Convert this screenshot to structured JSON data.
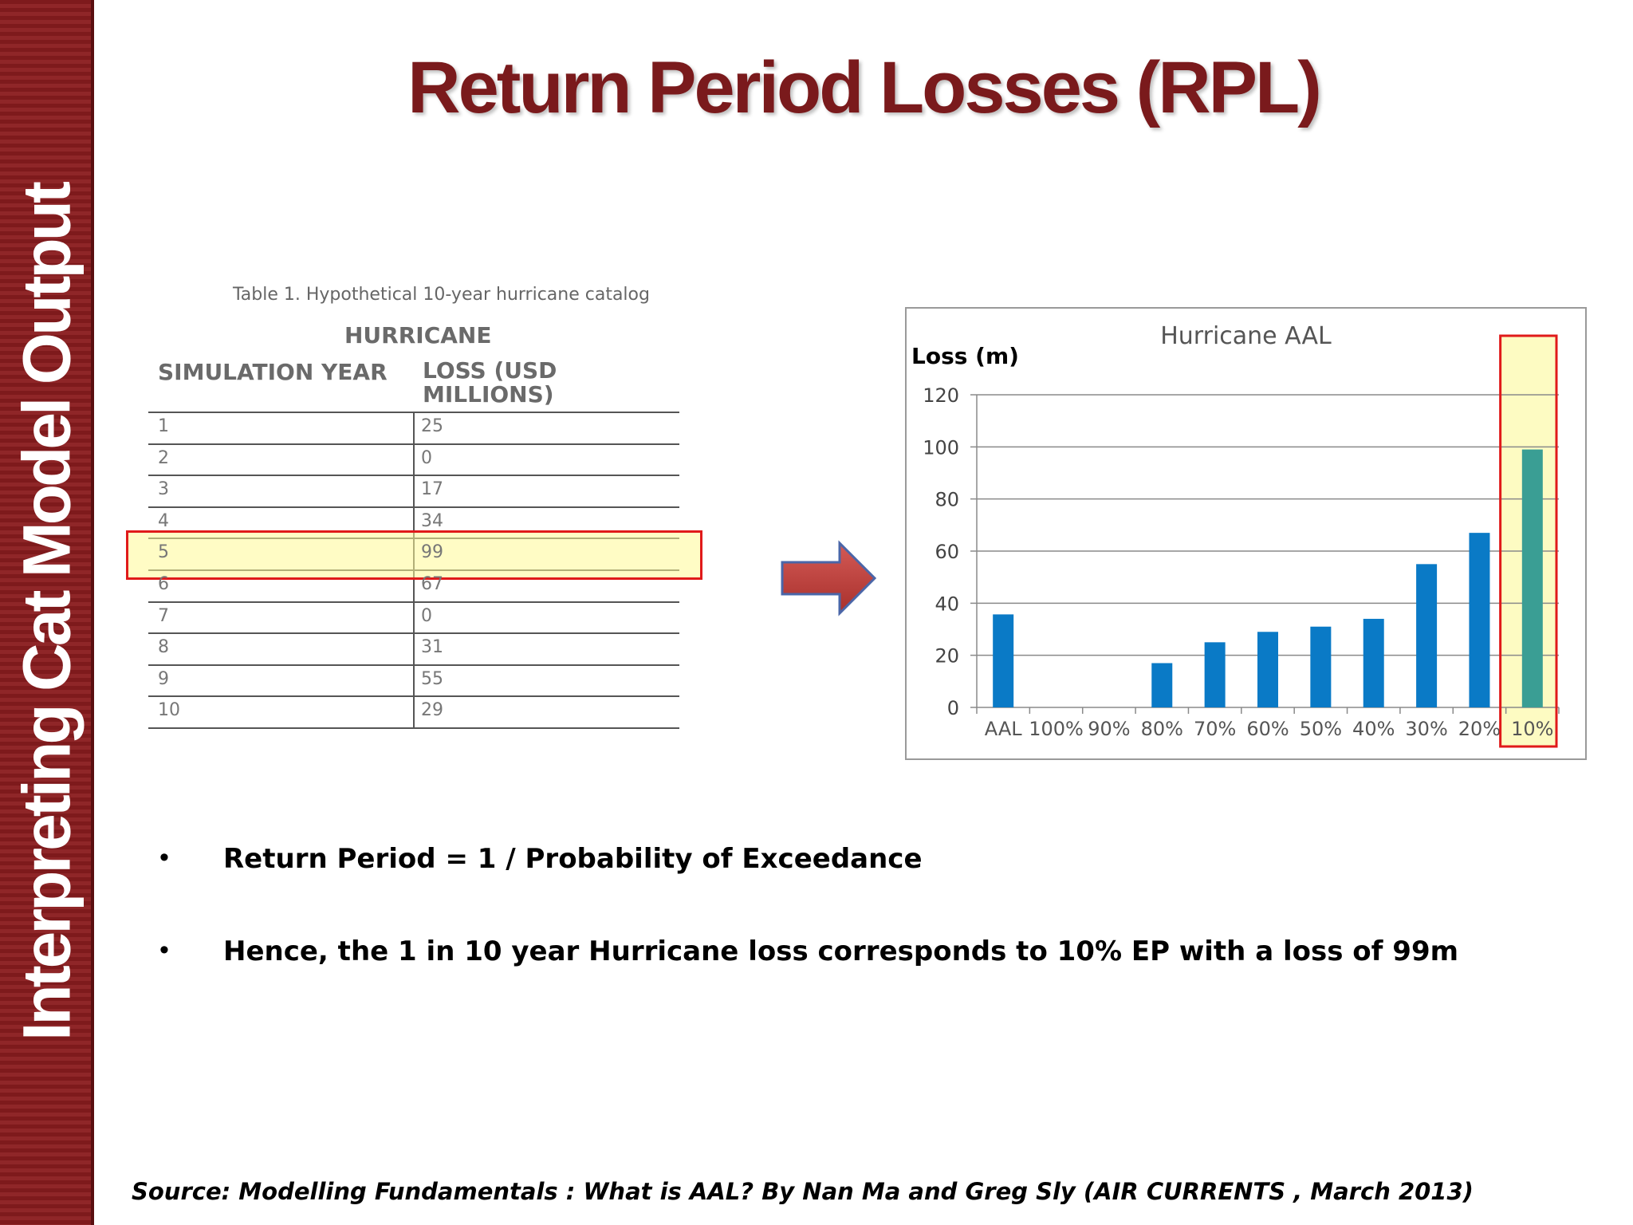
{
  "sidebar": {
    "title": "Interpreting Cat Model Output"
  },
  "slide": {
    "title": "Return Period Losses (RPL)"
  },
  "table": {
    "caption": "Table 1. Hypothetical 10-year hurricane catalog",
    "group_header": "HURRICANE",
    "col_year": "SIMULATION YEAR",
    "col_loss": "LOSS (USD MILLIONS)",
    "rows": [
      {
        "year": "1",
        "loss": "25"
      },
      {
        "year": "2",
        "loss": "0"
      },
      {
        "year": "3",
        "loss": "17"
      },
      {
        "year": "4",
        "loss": "34"
      },
      {
        "year": "5",
        "loss": "99"
      },
      {
        "year": "6",
        "loss": "67"
      },
      {
        "year": "7",
        "loss": "0"
      },
      {
        "year": "8",
        "loss": "31"
      },
      {
        "year": "9",
        "loss": "55"
      },
      {
        "year": "10",
        "loss": "29"
      }
    ],
    "highlight_row_index": 4
  },
  "chart_data": {
    "type": "bar",
    "title": "Hurricane AAL",
    "ylabel": "Loss (m)",
    "xlabel": "",
    "ylim": [
      0,
      120
    ],
    "yticks": [
      0,
      20,
      40,
      60,
      80,
      100,
      120
    ],
    "categories": [
      "AAL",
      "100%",
      "90%",
      "80%",
      "70%",
      "60%",
      "50%",
      "40%",
      "30%",
      "20%",
      "10%"
    ],
    "values": [
      35.7,
      0,
      0,
      17,
      25,
      29,
      31,
      34,
      55,
      67,
      99
    ],
    "grid": true,
    "highlight_category": "10%",
    "colors": {
      "bar": "#0a7ac6",
      "highlight_bar": "#3a9e94",
      "highlight_fill": "#fdfbc2",
      "highlight_border": "#e01a1a"
    }
  },
  "bullets": [
    "Return Period = 1 / Probability of Exceedance",
    "Hence, the 1 in 10 year Hurricane loss corresponds to 10% EP with a loss of 99m"
  ],
  "source": "Source: Modelling Fundamentals : What is AAL? By Nan Ma and Greg Sly (AIR CURRENTS , March 2013)"
}
